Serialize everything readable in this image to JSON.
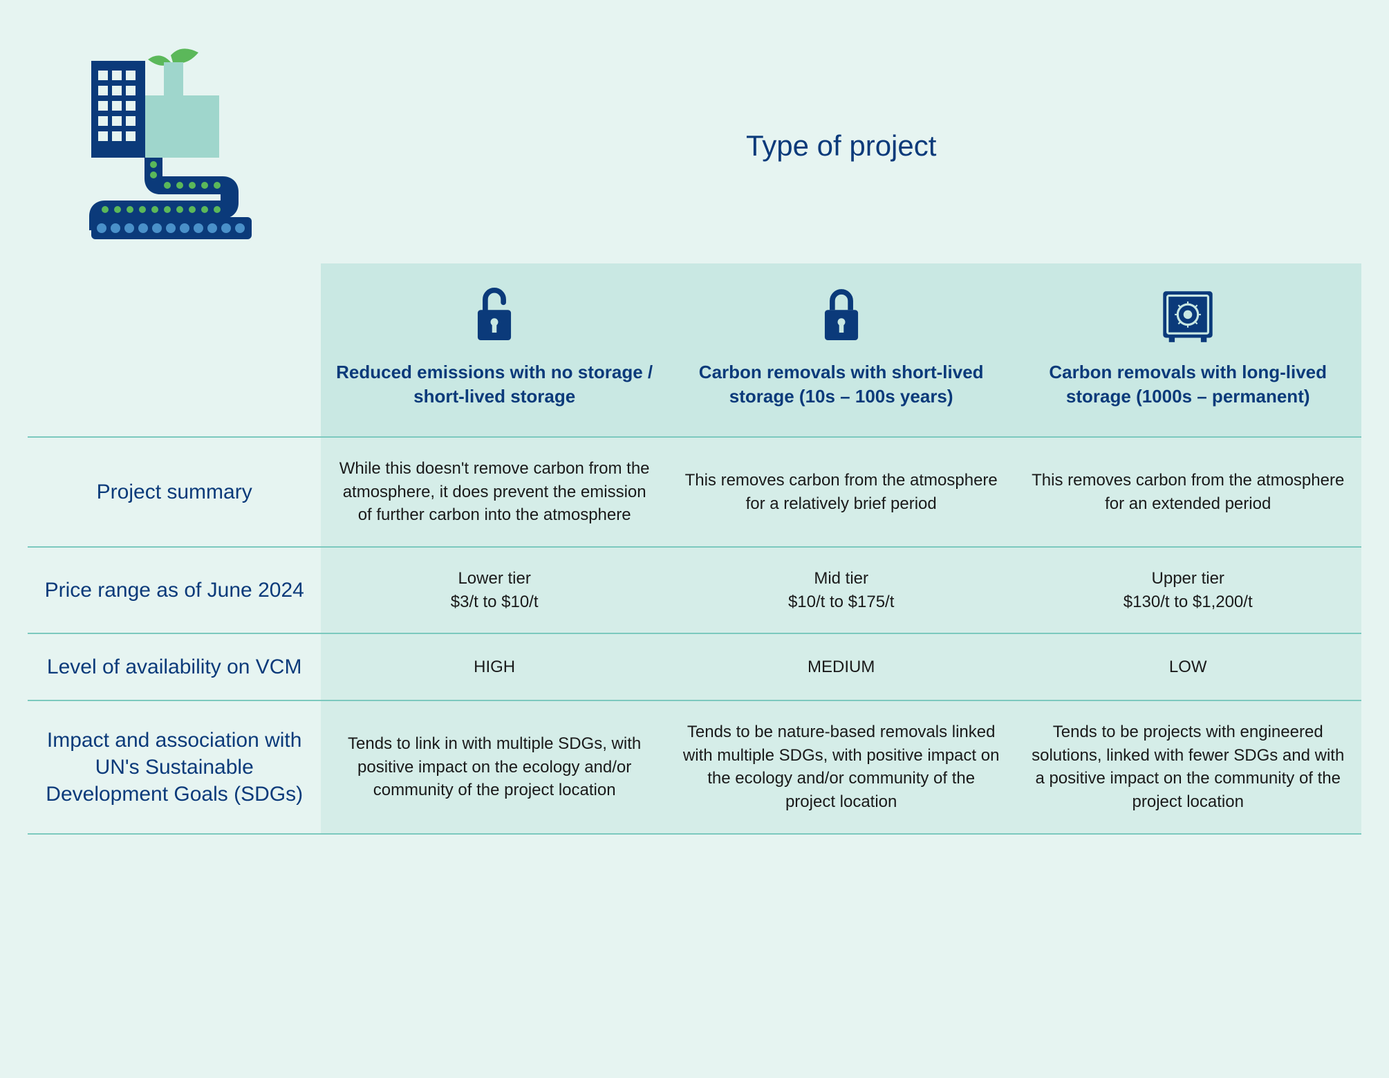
{
  "title": "Type of project",
  "colors": {
    "page_bg": "#e6f4f1",
    "header_bg": "#c9e8e3",
    "data_bg": "#d5ede8",
    "accent_text": "#0b3a7a",
    "body_text": "#1a1a1a",
    "row_border": "#7cc9be",
    "icon_fill": "#0b3a7a",
    "factory_blue": "#0b3a7a",
    "factory_teal": "#7cc9be",
    "leaf_green": "#5bb85a"
  },
  "columns": [
    {
      "icon": "unlocked-padlock",
      "label": "Reduced emissions with no storage / short-lived storage"
    },
    {
      "icon": "locked-padlock",
      "label": "Carbon removals with short-lived storage (10s – 100s years)"
    },
    {
      "icon": "safe-vault",
      "label": "Carbon removals with long-lived storage (1000s – permanent)"
    }
  ],
  "rows": [
    {
      "label": "Project summary",
      "cells": [
        "While this doesn't remove carbon from the atmosphere, it does prevent the emission of further carbon into the atmosphere",
        "This removes carbon from the atmosphere for a relatively brief period",
        "This removes carbon from the atmosphere for an extended period"
      ]
    },
    {
      "label": "Price range as of June 2024",
      "cells": [
        "Lower tier\n$3/t to $10/t",
        "Mid tier\n$10/t to $175/t",
        "Upper tier\n$130/t to $1,200/t"
      ]
    },
    {
      "label": "Level of availability on VCM",
      "cells": [
        "HIGH",
        "MEDIUM",
        "LOW"
      ]
    },
    {
      "label": "Impact and association with UN's Sustainable Development Goals (SDGs)",
      "cells": [
        "Tends to link in with multiple SDGs, with positive impact on the ecology and/or community of the project location",
        "Tends to be nature-based removals linked with multiple SDGs, with positive impact on the ecology and/or community of the project location",
        "Tends to be projects with engineered solutions, linked with fewer SDGs and with a positive impact on the community of the project location"
      ]
    }
  ],
  "typography": {
    "title_fontsize": 42,
    "header_label_fontsize": 26,
    "row_label_fontsize": 30,
    "body_fontsize": 24
  },
  "layout": {
    "type": "table",
    "col_widths_pct": [
      22,
      26,
      26,
      26
    ]
  }
}
